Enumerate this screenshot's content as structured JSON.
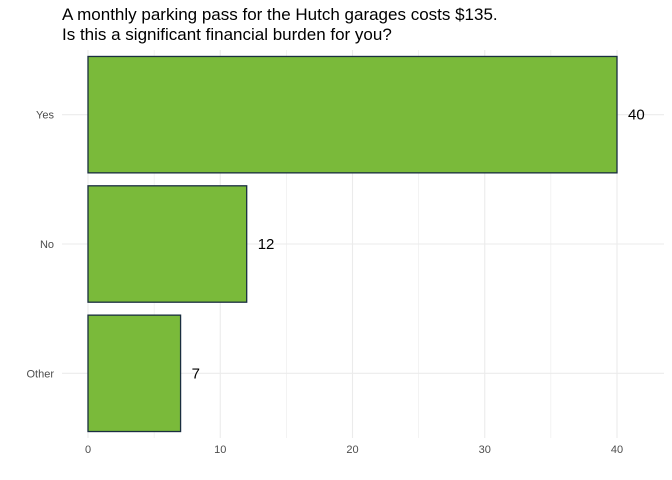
{
  "chart_data": {
    "type": "bar",
    "orientation": "horizontal",
    "title": [
      "A monthly parking pass for the Hutch garages costs $135.",
      "Is this a significant financial burden for you?"
    ],
    "categories": [
      "Yes",
      "No",
      "Other"
    ],
    "values": [
      40,
      12,
      7
    ],
    "xlim": [
      0,
      43.5
    ],
    "xticks": [
      0,
      10,
      20,
      30,
      40
    ],
    "grid": true,
    "legend": "none",
    "bar_color": "#7aba3a",
    "bar_border_color": "#1a2e40",
    "data_labels": true
  }
}
